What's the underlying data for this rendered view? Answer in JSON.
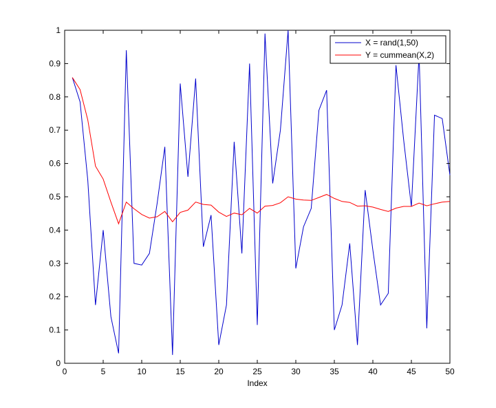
{
  "chart_data": {
    "type": "line",
    "xlabel": "Index",
    "ylabel": "",
    "title": "",
    "xlim": [
      0,
      50
    ],
    "ylim": [
      0,
      1
    ],
    "xticks": [
      0,
      5,
      10,
      15,
      20,
      25,
      30,
      35,
      40,
      45,
      50
    ],
    "yticks": [
      0,
      0.1,
      0.2,
      0.3,
      0.4,
      0.5,
      0.6,
      0.7,
      0.8,
      0.9,
      1
    ],
    "xtick_labels": [
      "0",
      "5",
      "10",
      "15",
      "20",
      "25",
      "30",
      "35",
      "40",
      "45",
      "50"
    ],
    "ytick_labels": [
      "0",
      "0.1",
      "0.2",
      "0.3",
      "0.4",
      "0.5",
      "0.6",
      "0.7",
      "0.8",
      "0.9",
      "1"
    ],
    "grid": false,
    "legend_position": "top-right",
    "x": [
      1,
      2,
      3,
      4,
      5,
      6,
      7,
      8,
      9,
      10,
      11,
      12,
      13,
      14,
      15,
      16,
      17,
      18,
      19,
      20,
      21,
      22,
      23,
      24,
      25,
      26,
      27,
      28,
      29,
      30,
      31,
      32,
      33,
      34,
      35,
      36,
      37,
      38,
      39,
      40,
      41,
      42,
      43,
      44,
      45,
      46,
      47,
      48,
      49,
      50
    ],
    "series": [
      {
        "name": "X = rand(1,50)",
        "color": "#0000cc",
        "values": [
          0.858,
          0.785,
          0.55,
          0.175,
          0.4,
          0.14,
          0.03,
          0.94,
          0.3,
          0.295,
          0.33,
          0.48,
          0.65,
          0.025,
          0.84,
          0.56,
          0.855,
          0.35,
          0.445,
          0.055,
          0.175,
          0.665,
          0.33,
          0.9,
          0.115,
          0.99,
          0.54,
          0.7,
          1.0,
          0.285,
          0.41,
          0.465,
          0.76,
          0.82,
          0.1,
          0.175,
          0.36,
          0.055,
          0.52,
          0.34,
          0.175,
          0.21,
          0.895,
          0.67,
          0.47,
          0.93,
          0.105,
          0.745,
          0.735,
          0.565
        ]
      },
      {
        "name": "Y = cummean(X,2)",
        "color": "#ff0000",
        "values": [
          0.858,
          0.822,
          0.731,
          0.592,
          0.553,
          0.484,
          0.419,
          0.484,
          0.464,
          0.447,
          0.436,
          0.44,
          0.456,
          0.425,
          0.453,
          0.46,
          0.484,
          0.477,
          0.475,
          0.454,
          0.441,
          0.451,
          0.446,
          0.465,
          0.451,
          0.472,
          0.474,
          0.482,
          0.5,
          0.493,
          0.49,
          0.489,
          0.498,
          0.507,
          0.495,
          0.486,
          0.483,
          0.472,
          0.473,
          0.469,
          0.462,
          0.456,
          0.466,
          0.471,
          0.471,
          0.481,
          0.473,
          0.479,
          0.484,
          0.486
        ]
      }
    ]
  }
}
